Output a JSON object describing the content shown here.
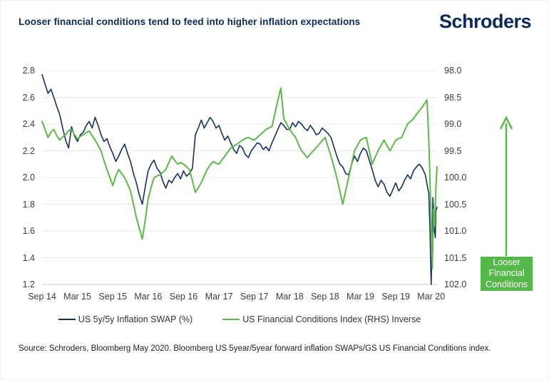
{
  "title": "Looser financial conditions tend to feed into higher inflation expectations",
  "logo_text": "Schroders",
  "source": "Source: Schroders, Bloomberg May 2020. Bloomberg US 5year/5year forward inflation SWAPs/GS US Financial Conditions index.",
  "colors": {
    "navy": "#14305f",
    "green": "#5cb947",
    "annotation_green": "#54b948",
    "gridline": "#e8e8e8",
    "axis_line": "#c9c9c9",
    "brand_navy": "#0a2a5e"
  },
  "legend": [
    {
      "label": "US 5y/5y Inflation SWAP (%)",
      "color": "#14305f"
    },
    {
      "label": "US Financial Conditions Index (RHS) Inverse",
      "color": "#5cb947"
    }
  ],
  "annotation": {
    "lines": [
      "Looser",
      "Financial",
      "Conditions"
    ]
  },
  "chart_data": {
    "type": "line",
    "title": "Looser financial conditions tend to feed into higher inflation expectations",
    "x_unit": "months since Sep 2014",
    "x_range": [
      0,
      67
    ],
    "grid": "horizontal",
    "legend_position": "bottom",
    "x_ticks": [
      {
        "m": 0,
        "label": "Sep 14"
      },
      {
        "m": 6,
        "label": "Mar 15"
      },
      {
        "m": 12,
        "label": "Sep 15"
      },
      {
        "m": 18,
        "label": "Mar 16"
      },
      {
        "m": 24,
        "label": "Sep 16"
      },
      {
        "m": 30,
        "label": "Mar 17"
      },
      {
        "m": 36,
        "label": "Sep 17"
      },
      {
        "m": 42,
        "label": "Mar 18"
      },
      {
        "m": 48,
        "label": "Sep 18"
      },
      {
        "m": 54,
        "label": "Mar 19"
      },
      {
        "m": 60,
        "label": "Sep 19"
      },
      {
        "m": 66,
        "label": "Mar 20"
      }
    ],
    "left_axis": {
      "range": [
        1.2,
        2.8
      ],
      "ticks": [
        "2.8",
        "2.6",
        "2.4",
        "2.2",
        "2.0",
        "1.8",
        "1.6",
        "1.4",
        "1.2"
      ]
    },
    "right_axis": {
      "range": [
        98.0,
        102.0
      ],
      "inverted": true,
      "ticks": [
        "98.0",
        "98.5",
        "99.0",
        "99.5",
        "100.0",
        "100.5",
        "101.0",
        "101.5",
        "102.0"
      ]
    },
    "series": [
      {
        "name": "US 5y/5y Inflation SWAP (%)",
        "axis": "left",
        "color": "#14305f",
        "points": [
          [
            0,
            2.77
          ],
          [
            0.5,
            2.7
          ],
          [
            1,
            2.63
          ],
          [
            1.5,
            2.66
          ],
          [
            2,
            2.6
          ],
          [
            2.5,
            2.53
          ],
          [
            3,
            2.47
          ],
          [
            3.5,
            2.37
          ],
          [
            4,
            2.28
          ],
          [
            4.5,
            2.22
          ],
          [
            5,
            2.38
          ],
          [
            5.5,
            2.31
          ],
          [
            6,
            2.27
          ],
          [
            6.5,
            2.32
          ],
          [
            7,
            2.34
          ],
          [
            7.5,
            2.39
          ],
          [
            8,
            2.42
          ],
          [
            8.5,
            2.37
          ],
          [
            9,
            2.45
          ],
          [
            9.5,
            2.39
          ],
          [
            10,
            2.32
          ],
          [
            10.5,
            2.27
          ],
          [
            11,
            2.29
          ],
          [
            11.5,
            2.23
          ],
          [
            12,
            2.18
          ],
          [
            12.5,
            2.12
          ],
          [
            13,
            2.16
          ],
          [
            13.5,
            2.21
          ],
          [
            14,
            2.25
          ],
          [
            14.5,
            2.18
          ],
          [
            15,
            2.12
          ],
          [
            15.5,
            2.03
          ],
          [
            16,
            1.96
          ],
          [
            16.5,
            1.87
          ],
          [
            17,
            1.8
          ],
          [
            17.5,
            1.93
          ],
          [
            18,
            2.05
          ],
          [
            18.5,
            2.1
          ],
          [
            19,
            2.13
          ],
          [
            19.5,
            2.07
          ],
          [
            20,
            2.04
          ],
          [
            20.5,
            1.97
          ],
          [
            21,
            1.92
          ],
          [
            21.5,
            1.98
          ],
          [
            22,
            1.96
          ],
          [
            22.5,
            2.0
          ],
          [
            23,
            2.03
          ],
          [
            23.5,
            1.99
          ],
          [
            24,
            2.05
          ],
          [
            24.5,
            2.01
          ],
          [
            25,
            2.03
          ],
          [
            25.5,
            2.07
          ],
          [
            26,
            2.32
          ],
          [
            26.5,
            2.37
          ],
          [
            27,
            2.43
          ],
          [
            27.5,
            2.37
          ],
          [
            28,
            2.41
          ],
          [
            28.5,
            2.45
          ],
          [
            29,
            2.42
          ],
          [
            29.5,
            2.37
          ],
          [
            30,
            2.39
          ],
          [
            30.5,
            2.33
          ],
          [
            31,
            2.28
          ],
          [
            31.5,
            2.31
          ],
          [
            32,
            2.26
          ],
          [
            32.5,
            2.21
          ],
          [
            33,
            2.18
          ],
          [
            33.5,
            2.24
          ],
          [
            34,
            2.22
          ],
          [
            34.5,
            2.17
          ],
          [
            35,
            2.15
          ],
          [
            35.5,
            2.2
          ],
          [
            36,
            2.23
          ],
          [
            36.5,
            2.26
          ],
          [
            37,
            2.25
          ],
          [
            37.5,
            2.21
          ],
          [
            38,
            2.23
          ],
          [
            38.5,
            2.2
          ],
          [
            39,
            2.26
          ],
          [
            39.5,
            2.31
          ],
          [
            40,
            2.36
          ],
          [
            40.5,
            2.41
          ],
          [
            41,
            2.39
          ],
          [
            41.5,
            2.36
          ],
          [
            42,
            2.36
          ],
          [
            42.5,
            2.41
          ],
          [
            43,
            2.38
          ],
          [
            43.5,
            2.42
          ],
          [
            44,
            2.4
          ],
          [
            44.5,
            2.37
          ],
          [
            45,
            2.35
          ],
          [
            45.5,
            2.39
          ],
          [
            46,
            2.36
          ],
          [
            46.5,
            2.32
          ],
          [
            47,
            2.33
          ],
          [
            47.5,
            2.37
          ],
          [
            48,
            2.35
          ],
          [
            48.5,
            2.33
          ],
          [
            49,
            2.3
          ],
          [
            49.5,
            2.23
          ],
          [
            50,
            2.16
          ],
          [
            50.5,
            2.1
          ],
          [
            51,
            2.08
          ],
          [
            51.5,
            2.03
          ],
          [
            52,
            2.02
          ],
          [
            52.5,
            2.1
          ],
          [
            53,
            2.16
          ],
          [
            53.5,
            2.12
          ],
          [
            54,
            2.18
          ],
          [
            54.5,
            2.22
          ],
          [
            55,
            2.2
          ],
          [
            55.5,
            2.13
          ],
          [
            56,
            2.06
          ],
          [
            56.5,
            1.98
          ],
          [
            57,
            1.93
          ],
          [
            57.5,
            1.98
          ],
          [
            58,
            1.95
          ],
          [
            58.5,
            1.89
          ],
          [
            59,
            1.86
          ],
          [
            59.5,
            1.91
          ],
          [
            60,
            1.96
          ],
          [
            60.5,
            1.9
          ],
          [
            61,
            1.93
          ],
          [
            61.5,
            1.98
          ],
          [
            62,
            2.02
          ],
          [
            62.5,
            1.99
          ],
          [
            63,
            2.05
          ],
          [
            63.5,
            2.08
          ],
          [
            64,
            2.1
          ],
          [
            64.5,
            2.07
          ],
          [
            65,
            2.02
          ],
          [
            65.3,
            1.95
          ],
          [
            65.6,
            1.88
          ],
          [
            65.8,
            1.6
          ],
          [
            66,
            1.2
          ],
          [
            66.2,
            1.55
          ],
          [
            66.3,
            1.85
          ],
          [
            66.5,
            1.62
          ],
          [
            66.7,
            1.55
          ],
          [
            66.8,
            1.75
          ],
          [
            67,
            1.78
          ]
        ]
      },
      {
        "name": "US Financial Conditions Index (RHS) Inverse",
        "axis": "right",
        "color": "#5cb947",
        "points": [
          [
            0,
            98.95
          ],
          [
            0.5,
            99.1
          ],
          [
            1,
            99.25
          ],
          [
            1.5,
            99.15
          ],
          [
            2,
            99.1
          ],
          [
            2.5,
            99.22
          ],
          [
            3,
            99.3
          ],
          [
            3.5,
            99.24
          ],
          [
            4,
            99.2
          ],
          [
            4.5,
            99.12
          ],
          [
            5,
            99.1
          ],
          [
            5.5,
            99.2
          ],
          [
            6,
            99.28
          ],
          [
            6.5,
            99.23
          ],
          [
            7,
            99.2
          ],
          [
            7.5,
            99.16
          ],
          [
            8,
            99.13
          ],
          [
            8.5,
            99.22
          ],
          [
            9,
            99.3
          ],
          [
            9.5,
            99.4
          ],
          [
            10,
            99.5
          ],
          [
            10.5,
            99.68
          ],
          [
            11,
            99.85
          ],
          [
            11.5,
            100.0
          ],
          [
            12,
            100.15
          ],
          [
            12.5,
            99.97
          ],
          [
            13,
            99.85
          ],
          [
            13.5,
            99.93
          ],
          [
            14,
            100.0
          ],
          [
            14.5,
            100.12
          ],
          [
            15,
            100.25
          ],
          [
            15.5,
            100.5
          ],
          [
            16,
            100.75
          ],
          [
            16.5,
            100.95
          ],
          [
            17,
            101.15
          ],
          [
            17.5,
            100.8
          ],
          [
            18,
            100.4
          ],
          [
            18.5,
            100.18
          ],
          [
            19,
            100.0
          ],
          [
            19.5,
            99.97
          ],
          [
            20,
            99.95
          ],
          [
            20.5,
            99.9
          ],
          [
            21,
            99.85
          ],
          [
            21.5,
            99.72
          ],
          [
            22,
            99.6
          ],
          [
            22.5,
            99.68
          ],
          [
            23,
            99.75
          ],
          [
            23.5,
            99.72
          ],
          [
            24,
            99.75
          ],
          [
            24.5,
            99.8
          ],
          [
            25,
            99.85
          ],
          [
            25.5,
            100.06
          ],
          [
            26,
            100.28
          ],
          [
            26.5,
            100.19
          ],
          [
            27,
            100.1
          ],
          [
            27.5,
            99.97
          ],
          [
            28,
            99.85
          ],
          [
            28.5,
            99.77
          ],
          [
            29,
            99.7
          ],
          [
            29.5,
            99.73
          ],
          [
            30,
            99.75
          ],
          [
            30.5,
            99.67
          ],
          [
            31,
            99.6
          ],
          [
            31.5,
            99.52
          ],
          [
            32,
            99.45
          ],
          [
            32.5,
            99.41
          ],
          [
            33,
            99.38
          ],
          [
            33.5,
            99.34
          ],
          [
            34,
            99.3
          ],
          [
            34.5,
            99.27
          ],
          [
            35,
            99.25
          ],
          [
            35.5,
            99.28
          ],
          [
            36,
            99.3
          ],
          [
            36.5,
            99.25
          ],
          [
            37,
            99.2
          ],
          [
            37.5,
            99.15
          ],
          [
            38,
            99.1
          ],
          [
            38.5,
            99.07
          ],
          [
            39,
            99.05
          ],
          [
            39.5,
            98.8
          ],
          [
            40,
            98.55
          ],
          [
            40.5,
            98.33
          ],
          [
            41,
            98.9
          ],
          [
            41.5,
            99.0
          ],
          [
            42,
            99.1
          ],
          [
            42.5,
            99.18
          ],
          [
            43,
            99.25
          ],
          [
            43.5,
            99.38
          ],
          [
            44,
            99.5
          ],
          [
            44.5,
            99.56
          ],
          [
            45,
            99.63
          ],
          [
            45.5,
            99.56
          ],
          [
            46,
            99.5
          ],
          [
            46.5,
            99.44
          ],
          [
            47,
            99.38
          ],
          [
            47.5,
            99.31
          ],
          [
            48,
            99.25
          ],
          [
            48.5,
            99.42
          ],
          [
            49,
            99.6
          ],
          [
            49.5,
            99.8
          ],
          [
            50,
            100.0
          ],
          [
            50.5,
            100.25
          ],
          [
            51,
            100.5
          ],
          [
            51.5,
            100.25
          ],
          [
            52,
            100.0
          ],
          [
            52.5,
            99.75
          ],
          [
            53,
            99.5
          ],
          [
            53.5,
            99.4
          ],
          [
            54,
            99.3
          ],
          [
            54.5,
            99.27
          ],
          [
            55,
            99.25
          ],
          [
            55.5,
            99.5
          ],
          [
            56,
            99.75
          ],
          [
            56.5,
            99.62
          ],
          [
            57,
            99.5
          ],
          [
            57.5,
            99.4
          ],
          [
            58,
            99.3
          ],
          [
            58.5,
            99.4
          ],
          [
            59,
            99.5
          ],
          [
            59.5,
            99.4
          ],
          [
            60,
            99.3
          ],
          [
            60.5,
            99.27
          ],
          [
            61,
            99.25
          ],
          [
            61.5,
            99.12
          ],
          [
            62,
            99.0
          ],
          [
            62.5,
            98.95
          ],
          [
            63,
            98.9
          ],
          [
            63.5,
            98.82
          ],
          [
            64,
            98.75
          ],
          [
            64.5,
            98.68
          ],
          [
            65,
            98.6
          ],
          [
            65.3,
            98.55
          ],
          [
            65.6,
            99.3
          ],
          [
            66,
            100.8
          ],
          [
            66.2,
            101.7
          ],
          [
            66.4,
            100.6
          ],
          [
            66.6,
            100.9
          ],
          [
            66.8,
            100.2
          ],
          [
            67,
            99.8
          ]
        ]
      }
    ]
  }
}
